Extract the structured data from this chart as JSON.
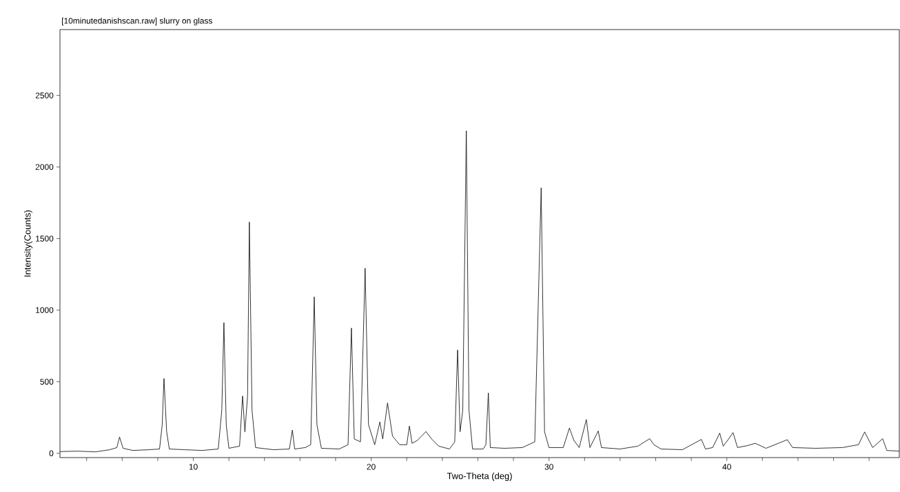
{
  "chart_data": {
    "type": "line",
    "title": "[10minutedanishscan.raw]  slurry on glass",
    "xlabel": "Two-Theta (deg)",
    "ylabel": "Intensity(Counts)",
    "xlim": [
      2.5,
      49.7
    ],
    "ylim": [
      -30,
      2960
    ],
    "xticks": [
      {
        "value": 4,
        "label": null
      },
      {
        "value": 6,
        "label": null
      },
      {
        "value": 8,
        "label": null
      },
      10,
      {
        "value": 12,
        "label": null
      },
      {
        "value": 14,
        "label": null
      },
      {
        "value": 16,
        "label": null
      },
      {
        "value": 18,
        "label": null
      },
      20,
      {
        "value": 22,
        "label": null
      },
      {
        "value": 24,
        "label": null
      },
      {
        "value": 26,
        "label": null
      },
      {
        "value": 28,
        "label": null
      },
      30,
      {
        "value": 32,
        "label": null
      },
      {
        "value": 34,
        "label": null
      },
      {
        "value": 36,
        "label": null
      },
      {
        "value": 38,
        "label": null
      },
      40,
      {
        "value": 42,
        "label": null
      },
      {
        "value": 44,
        "label": null
      },
      {
        "value": 46,
        "label": null
      },
      {
        "value": 48,
        "label": null
      }
    ],
    "yticks": [
      0,
      500,
      1000,
      1500,
      2000,
      2500
    ],
    "grid": false,
    "marker": "none",
    "line_style": "solid",
    "x": [
      2.5,
      3.5,
      4.5,
      5.3,
      5.7,
      5.85,
      6.05,
      6.6,
      7.5,
      8.1,
      8.25,
      8.35,
      8.5,
      8.65,
      9.5,
      10.5,
      11.4,
      11.6,
      11.72,
      11.85,
      12.0,
      12.6,
      12.77,
      12.9,
      13.05,
      13.15,
      13.3,
      13.5,
      14.5,
      15.4,
      15.57,
      15.7,
      16.3,
      16.6,
      16.8,
      16.95,
      17.2,
      18.2,
      18.7,
      18.89,
      19.05,
      19.4,
      19.66,
      19.85,
      20.2,
      20.49,
      20.65,
      20.92,
      21.2,
      21.6,
      22.0,
      22.15,
      22.3,
      22.6,
      23.08,
      23.4,
      23.8,
      24.4,
      24.7,
      24.86,
      25.0,
      25.15,
      25.35,
      25.5,
      25.7,
      26.3,
      26.45,
      26.59,
      26.7,
      27.5,
      28.5,
      29.2,
      29.56,
      29.75,
      30.0,
      30.8,
      31.15,
      31.4,
      31.7,
      32.1,
      32.3,
      32.77,
      32.95,
      34.0,
      35.0,
      35.66,
      35.9,
      36.3,
      37.5,
      38.57,
      38.8,
      39.2,
      39.6,
      39.8,
      40.1,
      40.35,
      40.6,
      41.2,
      41.6,
      42.2,
      43.4,
      43.7,
      45.0,
      46.5,
      47.4,
      47.75,
      48.2,
      48.76,
      49.0,
      49.7
    ],
    "series": [
      {
        "color": "#000000",
        "values": [
          12,
          15,
          10,
          25,
          40,
          114,
          35,
          20,
          25,
          30,
          200,
          523,
          150,
          30,
          25,
          20,
          30,
          300,
          913,
          200,
          35,
          50,
          400,
          150,
          400,
          1616,
          300,
          40,
          25,
          30,
          162,
          30,
          40,
          60,
          1093,
          200,
          35,
          30,
          60,
          875,
          100,
          80,
          1293,
          200,
          60,
          219,
          100,
          352,
          120,
          60,
          60,
          190,
          70,
          90,
          152,
          100,
          50,
          30,
          80,
          722,
          150,
          300,
          2253,
          300,
          30,
          30,
          60,
          422,
          40,
          35,
          40,
          80,
          1855,
          150,
          40,
          40,
          177,
          90,
          40,
          236,
          40,
          156,
          40,
          30,
          50,
          102,
          60,
          30,
          25,
          97,
          30,
          40,
          141,
          50,
          100,
          145,
          40,
          55,
          70,
          35,
          95,
          40,
          35,
          40,
          60,
          149,
          40,
          102,
          20,
          15
        ]
      }
    ]
  }
}
